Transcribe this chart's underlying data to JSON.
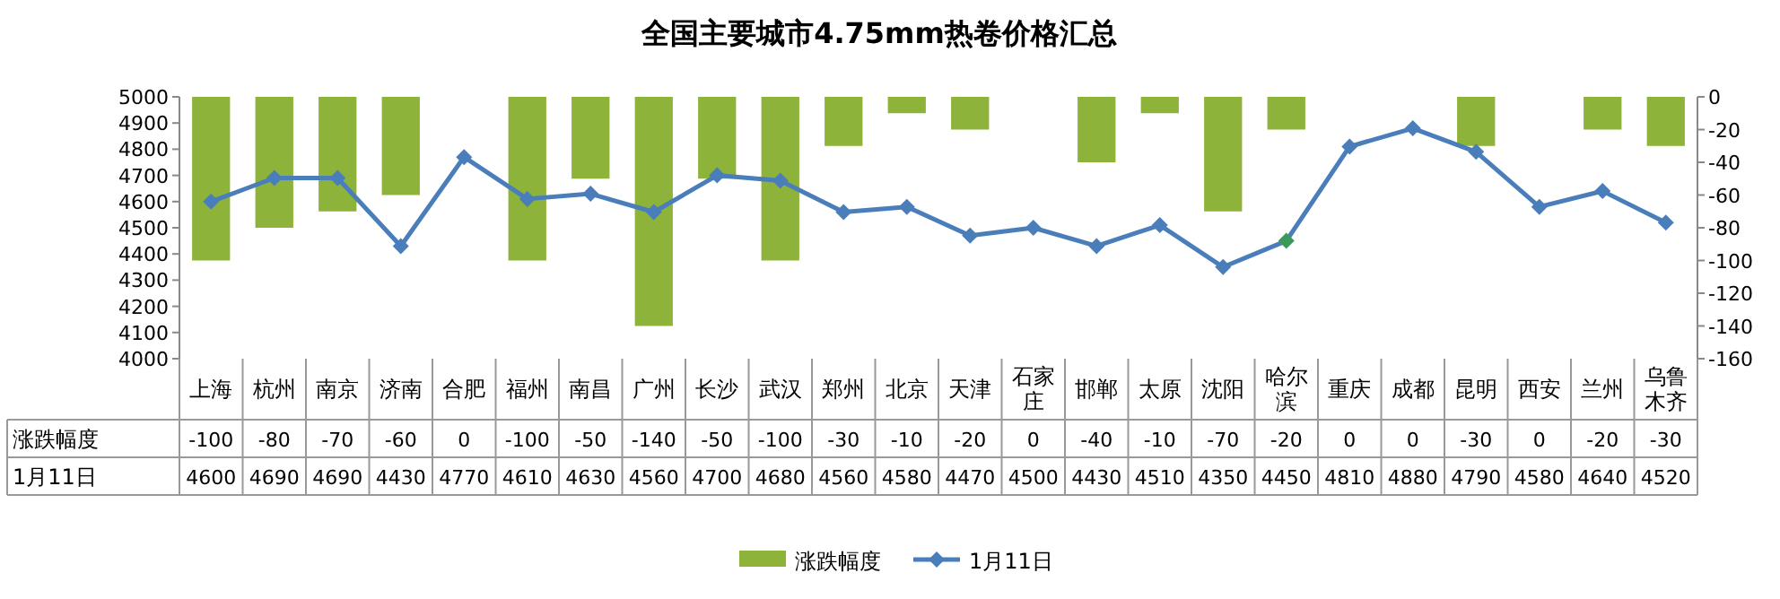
{
  "chart_data": {
    "type": "bar",
    "title": "全国主要城市4.75mm热卷价格汇总",
    "categories": [
      "上海",
      "杭州",
      "南京",
      "济南",
      "合肥",
      "福州",
      "南昌",
      "广州",
      "长沙",
      "武汉",
      "郑州",
      "北京",
      "天津",
      "石家庄",
      "邯郸",
      "太原",
      "沈阳",
      "哈尔滨",
      "重庆",
      "成都",
      "昆明",
      "西安",
      "兰州",
      "乌鲁木齐"
    ],
    "series": [
      {
        "name": "涨跌幅度",
        "axis": "y2",
        "color": "#8db33a",
        "values": [
          -100,
          -80,
          -70,
          -60,
          0,
          -100,
          -50,
          -140,
          -50,
          -100,
          -30,
          -10,
          -20,
          0,
          -40,
          -10,
          -70,
          -20,
          0,
          0,
          -30,
          0,
          -20,
          -30
        ]
      },
      {
        "name": "1月11日",
        "type": "line",
        "color": "#4a7ebb",
        "marker": "diamond",
        "colors": [
          "#4a7ebb",
          "#4a7ebb",
          "#4a7ebb",
          "#4a7ebb",
          "#4a7ebb",
          "#4a7ebb",
          "#4a7ebb",
          "#4a7ebb",
          "#4a7ebb",
          "#4a7ebb",
          "#4a7ebb",
          "#4a7ebb",
          "#4a7ebb",
          "#4a7ebb",
          "#4a7ebb",
          "#4a7ebb",
          "#4a7ebb",
          "#3a9a5a",
          "#4a7ebb",
          "#4a7ebb",
          "#4a7ebb",
          "#4a7ebb",
          "#4a7ebb",
          "#4a7ebb"
        ],
        "values": [
          4600,
          4690,
          4690,
          4430,
          4770,
          4610,
          4630,
          4560,
          4700,
          4680,
          4560,
          4580,
          4470,
          4500,
          4430,
          4510,
          4350,
          4450,
          4810,
          4880,
          4790,
          4580,
          4640,
          4520
        ]
      }
    ],
    "ylim": [
      4000,
      5000
    ],
    "yticks": [
      4000,
      4100,
      4200,
      4300,
      4400,
      4500,
      4600,
      4700,
      4800,
      4900,
      5000
    ],
    "y2lim": [
      -160,
      0
    ],
    "y2ticks": [
      -160,
      -140,
      -120,
      -100,
      -80,
      -60,
      -40,
      -20,
      0
    ],
    "data_labels": true,
    "legend": "bottom"
  }
}
